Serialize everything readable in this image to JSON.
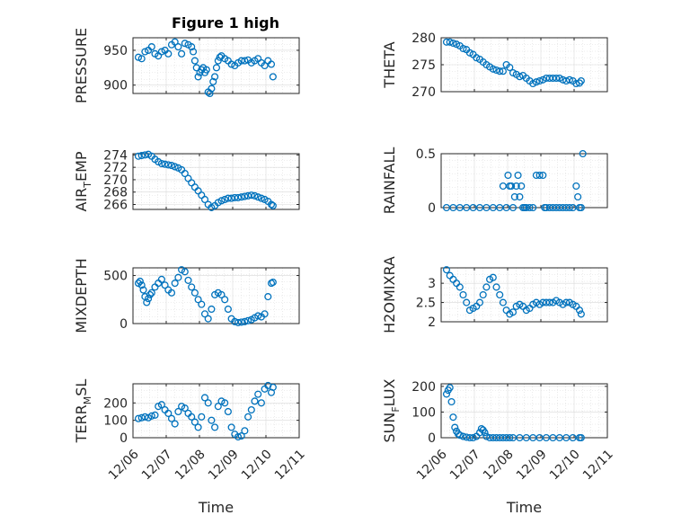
{
  "figure_title": "Figure 1 high",
  "colors": {
    "marker": "#0072BD",
    "axis": "#262626"
  },
  "chart_data": [
    {
      "type": "scatter",
      "name": "pressure",
      "title": "Figure 1 high",
      "ylabel": "PRESSURE",
      "ylabel_sub": "",
      "ylabel_after": "",
      "xlabel": "",
      "ylim": [
        888,
        968
      ],
      "yticks": [
        900,
        950
      ],
      "ytick_labels": [
        "900",
        "950"
      ],
      "xlim": [
        0,
        5
      ],
      "xtick_labels": [],
      "x": [
        0.0,
        0.1,
        0.2,
        0.3,
        0.4,
        0.5,
        0.6,
        0.7,
        0.8,
        0.9,
        1.0,
        1.1,
        1.2,
        1.3,
        1.4,
        1.5,
        1.6,
        1.65,
        1.7,
        1.75,
        1.8,
        1.85,
        1.9,
        1.95,
        2.0,
        2.05,
        2.1,
        2.15,
        2.2,
        2.25,
        2.3,
        2.35,
        2.4,
        2.45,
        2.5,
        2.6,
        2.7,
        2.8,
        2.9,
        3.0,
        3.1,
        3.2,
        3.3,
        3.4,
        3.5,
        3.6,
        3.7,
        3.8,
        3.9,
        4.0,
        4.05
      ],
      "y": [
        940,
        938,
        948,
        950,
        955,
        945,
        942,
        948,
        950,
        945,
        958,
        962,
        955,
        945,
        960,
        958,
        955,
        948,
        935,
        925,
        912,
        918,
        922,
        925,
        918,
        922,
        890,
        888,
        895,
        905,
        912,
        925,
        935,
        940,
        942,
        938,
        935,
        930,
        928,
        932,
        935,
        935,
        936,
        932,
        935,
        938,
        932,
        928,
        935,
        930,
        912
      ]
    },
    {
      "type": "scatter",
      "name": "theta",
      "title": "",
      "ylabel": "THETA",
      "ylabel_sub": "",
      "ylabel_after": "",
      "xlabel": "",
      "ylim": [
        270,
        280
      ],
      "yticks": [
        270,
        275,
        280
      ],
      "ytick_labels": [
        "270",
        "275",
        "280"
      ],
      "xlim": [
        0,
        5
      ],
      "xtick_labels": [],
      "x": [
        0.0,
        0.1,
        0.2,
        0.3,
        0.4,
        0.5,
        0.6,
        0.7,
        0.8,
        0.9,
        1.0,
        1.1,
        1.2,
        1.3,
        1.4,
        1.5,
        1.6,
        1.7,
        1.8,
        1.9,
        2.0,
        2.1,
        2.2,
        2.3,
        2.4,
        2.5,
        2.6,
        2.7,
        2.8,
        2.9,
        3.0,
        3.1,
        3.2,
        3.3,
        3.4,
        3.5,
        3.6,
        3.7,
        3.8,
        3.9,
        4.0,
        4.05
      ],
      "y": [
        279.2,
        279.2,
        279.0,
        278.8,
        278.5,
        278.0,
        277.8,
        277.2,
        276.9,
        276.3,
        276.0,
        275.5,
        275.0,
        274.6,
        274.2,
        274.0,
        273.8,
        273.8,
        275.0,
        274.5,
        273.5,
        273.2,
        272.8,
        273.0,
        272.5,
        272.0,
        271.5,
        271.8,
        272.0,
        272.2,
        272.5,
        272.5,
        272.5,
        272.5,
        272.5,
        272.2,
        272.0,
        272.2,
        272.0,
        271.5,
        271.6,
        272.0
      ]
    },
    {
      "type": "scatter",
      "name": "air-temp",
      "title": "",
      "ylabel": "AIR",
      "ylabel_sub": "T",
      "ylabel_after": "EMP",
      "xlabel": "",
      "ylim": [
        265.2,
        274.2
      ],
      "yticks": [
        266,
        268,
        270,
        272,
        274
      ],
      "ytick_labels": [
        "266",
        "268",
        "270",
        "272",
        "274"
      ],
      "xlim": [
        0,
        5
      ],
      "xtick_labels": [],
      "x": [
        0.0,
        0.1,
        0.2,
        0.3,
        0.4,
        0.5,
        0.6,
        0.7,
        0.8,
        0.9,
        1.0,
        1.1,
        1.2,
        1.3,
        1.4,
        1.5,
        1.6,
        1.7,
        1.8,
        1.9,
        2.0,
        2.1,
        2.2,
        2.3,
        2.4,
        2.5,
        2.6,
        2.7,
        2.8,
        2.9,
        3.0,
        3.1,
        3.2,
        3.3,
        3.4,
        3.5,
        3.6,
        3.7,
        3.8,
        3.9,
        4.0,
        4.05
      ],
      "y": [
        273.8,
        273.9,
        274.0,
        274.1,
        273.8,
        273.3,
        272.9,
        272.6,
        272.5,
        272.4,
        272.3,
        272.1,
        271.9,
        271.6,
        271.0,
        270.2,
        269.5,
        268.8,
        268.2,
        267.5,
        266.8,
        266.0,
        265.5,
        265.8,
        266.3,
        266.6,
        266.8,
        267.0,
        267.0,
        267.1,
        267.1,
        267.2,
        267.3,
        267.4,
        267.5,
        267.4,
        267.2,
        267.0,
        266.8,
        266.5,
        266.0,
        265.8
      ]
    },
    {
      "type": "scatter",
      "name": "rainfall",
      "title": "",
      "ylabel": "RAINFALL",
      "ylabel_sub": "",
      "ylabel_after": "",
      "xlabel": "",
      "ylim": [
        0,
        0.5
      ],
      "yticks": [
        0,
        0.5
      ],
      "ytick_labels": [
        "0",
        "0.5"
      ],
      "xlim": [
        0,
        5
      ],
      "xtick_labels": [],
      "x": [
        0.0,
        0.2,
        0.4,
        0.6,
        0.8,
        1.0,
        1.2,
        1.4,
        1.6,
        1.7,
        1.8,
        1.85,
        1.9,
        1.95,
        2.0,
        2.05,
        2.1,
        2.15,
        2.2,
        2.25,
        2.3,
        2.35,
        2.4,
        2.5,
        2.6,
        2.7,
        2.8,
        2.9,
        2.95,
        3.0,
        3.1,
        3.2,
        3.3,
        3.4,
        3.5,
        3.6,
        3.7,
        3.8,
        3.9,
        3.95,
        4.0,
        4.05,
        4.1
      ],
      "y": [
        0,
        0,
        0,
        0,
        0,
        0,
        0,
        0,
        0,
        0.2,
        0,
        0.3,
        0.2,
        0.2,
        0,
        0.1,
        0.2,
        0.3,
        0.1,
        0.2,
        0,
        0,
        0,
        0,
        0,
        0.3,
        0.3,
        0.3,
        0,
        0,
        0,
        0,
        0,
        0,
        0,
        0,
        0,
        0,
        0.2,
        0.1,
        0,
        0,
        0.5
      ]
    },
    {
      "type": "scatter",
      "name": "mixdepth",
      "title": "",
      "ylabel": "MIXDEPTH",
      "ylabel_sub": "",
      "ylabel_after": "",
      "xlabel": "",
      "ylim": [
        0,
        580
      ],
      "yticks": [
        0,
        500
      ],
      "ytick_labels": [
        "0",
        "500"
      ],
      "xlim": [
        0,
        5
      ],
      "xtick_labels": [],
      "x": [
        0.0,
        0.05,
        0.1,
        0.15,
        0.2,
        0.25,
        0.3,
        0.35,
        0.4,
        0.5,
        0.6,
        0.7,
        0.8,
        0.9,
        1.0,
        1.1,
        1.2,
        1.3,
        1.4,
        1.5,
        1.6,
        1.7,
        1.8,
        1.9,
        2.0,
        2.1,
        2.2,
        2.3,
        2.4,
        2.5,
        2.6,
        2.7,
        2.8,
        2.9,
        3.0,
        3.1,
        3.2,
        3.3,
        3.4,
        3.5,
        3.6,
        3.7,
        3.8,
        3.9,
        4.0,
        4.05
      ],
      "y": [
        420,
        440,
        400,
        350,
        280,
        220,
        260,
        300,
        320,
        380,
        420,
        460,
        400,
        350,
        320,
        420,
        480,
        560,
        540,
        450,
        380,
        320,
        250,
        200,
        100,
        50,
        150,
        300,
        320,
        300,
        250,
        150,
        50,
        20,
        10,
        15,
        20,
        30,
        40,
        60,
        80,
        70,
        100,
        280,
        420,
        430
      ]
    },
    {
      "type": "scatter",
      "name": "h2omixra",
      "title": "",
      "ylabel": "H2OMIXRA",
      "ylabel_sub": "",
      "ylabel_after": "",
      "xlabel": "",
      "ylim": [
        2,
        3.4
      ],
      "yticks": [
        2,
        2.5,
        3
      ],
      "ytick_labels": [
        "2",
        "2.5",
        "3"
      ],
      "xlim": [
        0,
        5
      ],
      "xtick_labels": [],
      "x": [
        0.0,
        0.1,
        0.2,
        0.3,
        0.4,
        0.5,
        0.6,
        0.7,
        0.8,
        0.9,
        1.0,
        1.1,
        1.2,
        1.3,
        1.4,
        1.5,
        1.6,
        1.7,
        1.8,
        1.9,
        2.0,
        2.1,
        2.2,
        2.3,
        2.4,
        2.5,
        2.6,
        2.7,
        2.8,
        2.9,
        3.0,
        3.1,
        3.2,
        3.3,
        3.4,
        3.5,
        3.6,
        3.7,
        3.8,
        3.9,
        4.0,
        4.05
      ],
      "y": [
        3.35,
        3.2,
        3.1,
        3.0,
        2.9,
        2.7,
        2.5,
        2.3,
        2.35,
        2.4,
        2.5,
        2.7,
        2.9,
        3.1,
        3.15,
        2.9,
        2.7,
        2.5,
        2.3,
        2.2,
        2.25,
        2.4,
        2.45,
        2.4,
        2.3,
        2.35,
        2.45,
        2.5,
        2.45,
        2.5,
        2.5,
        2.5,
        2.5,
        2.55,
        2.5,
        2.45,
        2.5,
        2.5,
        2.45,
        2.4,
        2.3,
        2.2
      ]
    },
    {
      "type": "scatter",
      "name": "terr-msl",
      "title": "",
      "ylabel": "TERR",
      "ylabel_sub": "M",
      "ylabel_after": "SL",
      "xlabel": "Time",
      "ylim": [
        0,
        310
      ],
      "yticks": [
        0,
        100,
        200
      ],
      "ytick_labels": [
        "0",
        "100",
        "200"
      ],
      "xlim": [
        0,
        5
      ],
      "xtick_labels": [
        "12/06",
        "12/07",
        "12/08",
        "12/09",
        "12/10",
        "12/11"
      ],
      "x": [
        0.0,
        0.1,
        0.2,
        0.3,
        0.4,
        0.5,
        0.6,
        0.7,
        0.8,
        0.9,
        1.0,
        1.1,
        1.2,
        1.3,
        1.4,
        1.5,
        1.6,
        1.7,
        1.8,
        1.9,
        2.0,
        2.1,
        2.2,
        2.3,
        2.4,
        2.5,
        2.6,
        2.7,
        2.8,
        2.9,
        3.0,
        3.1,
        3.2,
        3.3,
        3.4,
        3.5,
        3.6,
        3.7,
        3.8,
        3.9,
        4.0,
        4.05
      ],
      "y": [
        110,
        115,
        120,
        115,
        125,
        130,
        180,
        190,
        160,
        140,
        110,
        80,
        150,
        180,
        170,
        140,
        120,
        90,
        60,
        120,
        230,
        200,
        100,
        60,
        180,
        210,
        200,
        150,
        60,
        20,
        5,
        10,
        40,
        120,
        160,
        210,
        250,
        200,
        280,
        300,
        260,
        290
      ]
    },
    {
      "type": "scatter",
      "name": "sun-flux",
      "title": "",
      "ylabel": "SUN",
      "ylabel_sub": "F",
      "ylabel_after": "LUX",
      "xlabel": "Time",
      "ylim": [
        0,
        210
      ],
      "yticks": [
        0,
        100,
        200
      ],
      "ytick_labels": [
        "0",
        "100",
        "200"
      ],
      "xlim": [
        0,
        5
      ],
      "xtick_labels": [
        "12/06",
        "12/07",
        "12/08",
        "12/09",
        "12/10",
        "12/11"
      ],
      "x": [
        0.0,
        0.05,
        0.1,
        0.15,
        0.2,
        0.25,
        0.3,
        0.35,
        0.4,
        0.5,
        0.6,
        0.7,
        0.8,
        0.9,
        1.0,
        1.05,
        1.1,
        1.15,
        1.2,
        1.3,
        1.4,
        1.5,
        1.6,
        1.7,
        1.8,
        1.9,
        2.0,
        2.2,
        2.4,
        2.6,
        2.8,
        3.0,
        3.2,
        3.4,
        3.6,
        3.8,
        4.0,
        4.05
      ],
      "y": [
        170,
        185,
        195,
        140,
        80,
        40,
        25,
        15,
        10,
        5,
        2,
        0,
        0,
        5,
        20,
        35,
        30,
        20,
        5,
        0,
        0,
        0,
        0,
        0,
        0,
        0,
        0,
        0,
        0,
        0,
        0,
        0,
        0,
        0,
        0,
        0,
        0,
        0
      ]
    }
  ]
}
